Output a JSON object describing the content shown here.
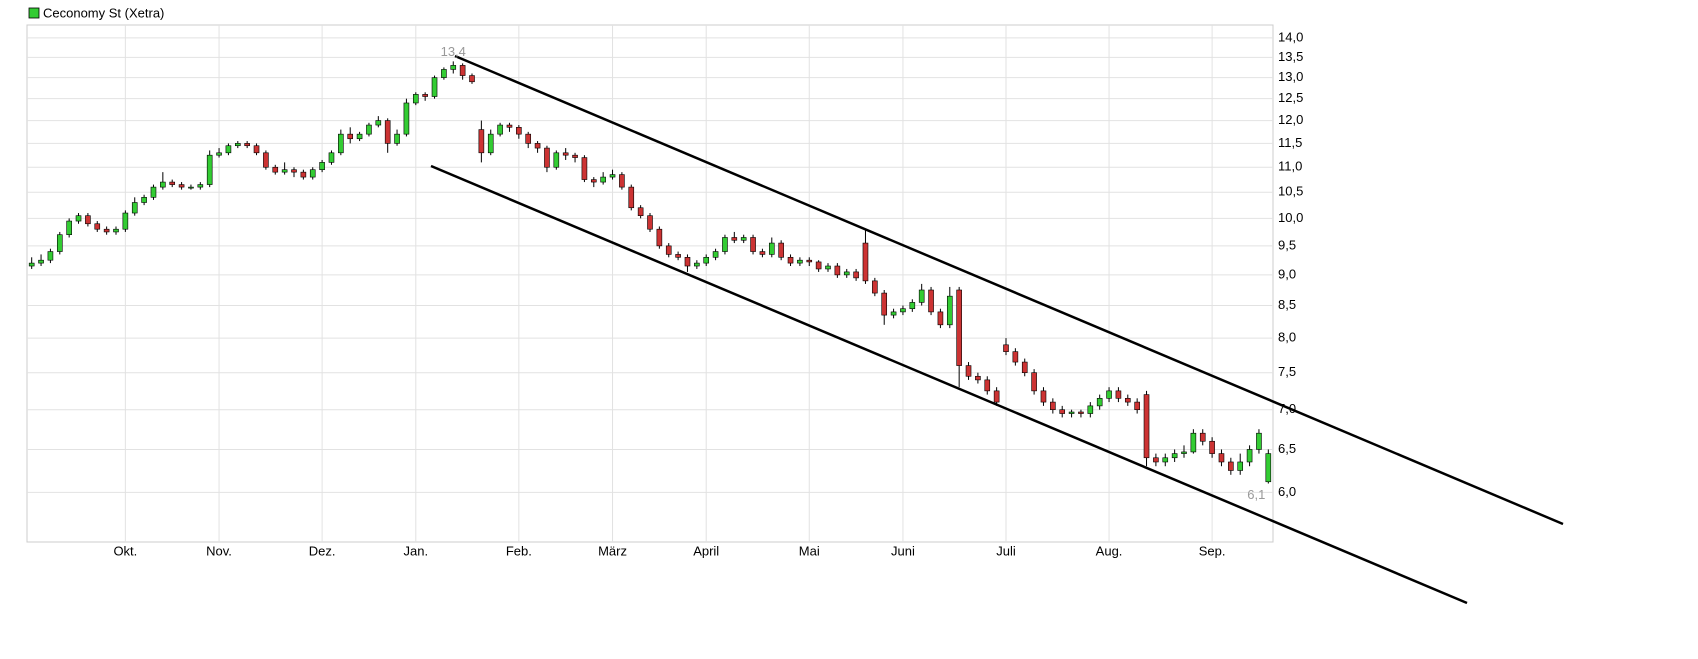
{
  "chart_data": {
    "type": "candlestick",
    "categories": [
      null,
      null,
      null,
      null,
      null,
      null,
      null,
      null,
      null,
      null,
      "Okt.",
      null,
      null,
      null,
      null,
      null,
      null,
      null,
      null,
      null,
      "Nov.",
      null,
      null,
      null,
      null,
      null,
      null,
      null,
      null,
      null,
      null,
      "Dez.",
      null,
      null,
      null,
      null,
      null,
      null,
      null,
      null,
      null,
      "Jan.",
      null,
      null,
      null,
      null,
      null,
      null,
      null,
      null,
      null,
      null,
      "Feb.",
      null,
      null,
      null,
      null,
      null,
      null,
      null,
      null,
      null,
      "März",
      null,
      null,
      null,
      null,
      null,
      null,
      null,
      null,
      null,
      "April",
      null,
      null,
      null,
      null,
      null,
      null,
      null,
      null,
      null,
      null,
      "Mai",
      null,
      null,
      null,
      null,
      null,
      null,
      null,
      null,
      null,
      "Juni",
      null,
      null,
      null,
      null,
      null,
      null,
      null,
      null,
      null,
      null,
      "Juli",
      null,
      null,
      null,
      null,
      null,
      null,
      null,
      null,
      null,
      null,
      "Aug.",
      null,
      null,
      null,
      null,
      null,
      null,
      null,
      null,
      null,
      null,
      "Sep.",
      null,
      null,
      null,
      null,
      null,
      null
    ],
    "series": [
      {
        "name": "Ceconomy St (Xetra)",
        "color": "#33cc33",
        "down_color": "#cc3333",
        "open": [
          9.15,
          9.2,
          9.25,
          9.4,
          9.7,
          9.95,
          10.05,
          9.9,
          9.8,
          9.75,
          9.8,
          10.1,
          10.3,
          10.4,
          10.6,
          10.7,
          10.65,
          10.6,
          10.6,
          10.65,
          11.25,
          11.3,
          11.45,
          11.5,
          11.45,
          11.3,
          11.0,
          10.9,
          10.95,
          10.9,
          10.8,
          10.95,
          11.1,
          11.3,
          11.7,
          11.6,
          11.7,
          11.9,
          12.0,
          11.5,
          11.7,
          12.4,
          12.6,
          12.55,
          13.0,
          13.2,
          13.3,
          13.05,
          11.8,
          11.3,
          11.7,
          11.9,
          11.85,
          11.7,
          11.5,
          11.4,
          11.0,
          11.3,
          11.25,
          11.2,
          10.75,
          10.7,
          10.8,
          10.85,
          10.6,
          10.2,
          10.05,
          9.8,
          9.5,
          9.35,
          9.3,
          9.15,
          9.2,
          9.3,
          9.4,
          9.65,
          9.6,
          9.65,
          9.4,
          9.35,
          9.55,
          9.3,
          9.2,
          9.25,
          9.22,
          9.1,
          9.15,
          9.0,
          9.05,
          9.55,
          8.9,
          8.7,
          8.35,
          8.4,
          8.45,
          8.55,
          8.75,
          8.4,
          8.2,
          8.75,
          7.6,
          7.45,
          7.4,
          7.25,
          7.9,
          7.8,
          7.65,
          7.5,
          7.25,
          7.1,
          7.0,
          6.95,
          6.97,
          6.95,
          7.05,
          7.15,
          7.25,
          7.15,
          7.1,
          7.2,
          6.4,
          6.35,
          6.4,
          6.45,
          6.47,
          6.7,
          6.6,
          6.45,
          6.35,
          6.25,
          6.35,
          6.5,
          6.12
        ],
        "high": [
          9.3,
          9.35,
          9.45,
          9.75,
          10.0,
          10.1,
          10.1,
          9.95,
          9.85,
          9.85,
          10.15,
          10.4,
          10.45,
          10.65,
          10.9,
          10.75,
          10.7,
          10.65,
          10.7,
          11.35,
          11.4,
          11.5,
          11.55,
          11.55,
          11.5,
          11.35,
          11.05,
          11.1,
          11.0,
          10.95,
          11.0,
          11.15,
          11.35,
          11.8,
          11.85,
          11.75,
          11.95,
          12.1,
          12.05,
          11.8,
          12.5,
          12.65,
          12.65,
          13.05,
          13.25,
          13.4,
          13.35,
          13.1,
          12.0,
          11.8,
          11.95,
          11.95,
          11.9,
          11.75,
          11.55,
          11.45,
          11.35,
          11.4,
          11.3,
          11.25,
          10.8,
          10.9,
          10.95,
          10.9,
          10.65,
          10.25,
          10.1,
          9.85,
          9.55,
          9.4,
          9.35,
          9.25,
          9.35,
          9.45,
          9.7,
          9.75,
          9.7,
          9.7,
          9.45,
          9.65,
          9.6,
          9.35,
          9.3,
          9.3,
          9.25,
          9.2,
          9.2,
          9.1,
          9.1,
          9.8,
          8.95,
          8.75,
          8.45,
          8.5,
          8.6,
          8.85,
          8.8,
          8.45,
          8.8,
          8.8,
          7.65,
          7.5,
          7.45,
          7.3,
          8.0,
          7.85,
          7.7,
          7.55,
          7.3,
          7.15,
          7.05,
          7.0,
          7.0,
          7.1,
          7.2,
          7.3,
          7.3,
          7.2,
          7.15,
          7.25,
          6.45,
          6.45,
          6.5,
          6.55,
          6.75,
          6.75,
          6.65,
          6.5,
          6.4,
          6.45,
          6.55,
          6.75,
          6.5
        ],
        "low": [
          9.1,
          9.15,
          9.2,
          9.35,
          9.65,
          9.9,
          9.85,
          9.75,
          9.7,
          9.7,
          9.75,
          10.05,
          10.25,
          10.35,
          10.55,
          10.6,
          10.55,
          10.55,
          10.55,
          10.6,
          11.2,
          11.25,
          11.4,
          11.4,
          11.25,
          10.95,
          10.85,
          10.85,
          10.8,
          10.75,
          10.75,
          10.9,
          11.05,
          11.25,
          11.5,
          11.55,
          11.65,
          11.85,
          11.3,
          11.45,
          11.65,
          12.35,
          12.45,
          12.5,
          12.95,
          13.1,
          12.95,
          12.85,
          11.1,
          11.25,
          11.65,
          11.75,
          11.6,
          11.4,
          11.3,
          10.9,
          10.95,
          11.15,
          11.1,
          10.7,
          10.6,
          10.65,
          10.75,
          10.55,
          10.15,
          10.0,
          9.75,
          9.45,
          9.3,
          9.25,
          9.05,
          9.1,
          9.15,
          9.25,
          9.35,
          9.55,
          9.55,
          9.35,
          9.3,
          9.3,
          9.25,
          9.15,
          9.15,
          9.15,
          9.05,
          9.05,
          8.95,
          8.95,
          8.9,
          8.85,
          8.65,
          8.2,
          8.3,
          8.35,
          8.4,
          8.5,
          8.35,
          8.15,
          8.15,
          7.3,
          7.4,
          7.35,
          7.2,
          7.05,
          7.75,
          7.6,
          7.45,
          7.2,
          7.05,
          6.95,
          6.9,
          6.9,
          6.9,
          6.9,
          7.0,
          7.1,
          7.1,
          7.05,
          6.95,
          6.3,
          6.3,
          6.3,
          6.35,
          6.4,
          6.45,
          6.55,
          6.4,
          6.3,
          6.2,
          6.2,
          6.3,
          6.45,
          6.1
        ],
        "close": [
          9.2,
          9.25,
          9.4,
          9.7,
          9.95,
          10.05,
          9.9,
          9.8,
          9.75,
          9.8,
          10.1,
          10.3,
          10.4,
          10.6,
          10.7,
          10.65,
          10.6,
          10.6,
          10.65,
          11.25,
          11.3,
          11.45,
          11.5,
          11.45,
          11.3,
          11.0,
          10.9,
          10.95,
          10.9,
          10.8,
          10.95,
          11.1,
          11.3,
          11.7,
          11.6,
          11.7,
          11.9,
          12.0,
          11.5,
          11.7,
          12.4,
          12.6,
          12.55,
          13.0,
          13.2,
          13.3,
          13.05,
          12.9,
          11.3,
          11.7,
          11.9,
          11.85,
          11.7,
          11.5,
          11.4,
          11.0,
          11.3,
          11.25,
          11.2,
          10.75,
          10.7,
          10.8,
          10.85,
          10.6,
          10.2,
          10.05,
          9.8,
          9.5,
          9.35,
          9.3,
          9.15,
          9.2,
          9.3,
          9.4,
          9.65,
          9.6,
          9.65,
          9.4,
          9.35,
          9.55,
          9.3,
          9.2,
          9.25,
          9.22,
          9.1,
          9.15,
          9.0,
          9.05,
          8.95,
          8.9,
          8.7,
          8.35,
          8.4,
          8.45,
          8.55,
          8.75,
          8.4,
          8.2,
          8.65,
          7.6,
          7.45,
          7.4,
          7.25,
          7.1,
          7.8,
          7.65,
          7.5,
          7.25,
          7.1,
          7.0,
          6.95,
          6.97,
          6.95,
          7.05,
          7.15,
          7.25,
          7.15,
          7.1,
          7.0,
          6.4,
          6.35,
          6.4,
          6.45,
          6.47,
          6.7,
          6.6,
          6.45,
          6.35,
          6.25,
          6.35,
          6.5,
          6.7,
          6.45
        ]
      }
    ],
    "ylim": [
      5.47,
      14.34
    ],
    "log_y": true,
    "yticks": [
      {
        "value": 6,
        "label": "6,0"
      },
      {
        "value": 6.5,
        "label": "6,5"
      },
      {
        "value": 7,
        "label": "7,0"
      },
      {
        "value": 7.5,
        "label": "7,5"
      },
      {
        "value": 8,
        "label": "8,0"
      },
      {
        "value": 8.5,
        "label": "8,5"
      },
      {
        "value": 9,
        "label": "9,0"
      },
      {
        "value": 9.5,
        "label": "9,5"
      },
      {
        "value": 10,
        "label": "10,0"
      },
      {
        "value": 10.5,
        "label": "10,5"
      },
      {
        "value": 11,
        "label": "11,0"
      },
      {
        "value": 11.5,
        "label": "11,5"
      },
      {
        "value": 12,
        "label": "12,0"
      },
      {
        "value": 12.5,
        "label": "12,5"
      },
      {
        "value": 13,
        "label": "13,0"
      },
      {
        "value": 13.5,
        "label": "13,5"
      },
      {
        "value": 14,
        "label": "14,0"
      }
    ],
    "annotations": [
      {
        "value": 13.4,
        "label": "13,4"
      },
      {
        "value": 6.1,
        "label": "6,1"
      }
    ],
    "grid": true
  }
}
